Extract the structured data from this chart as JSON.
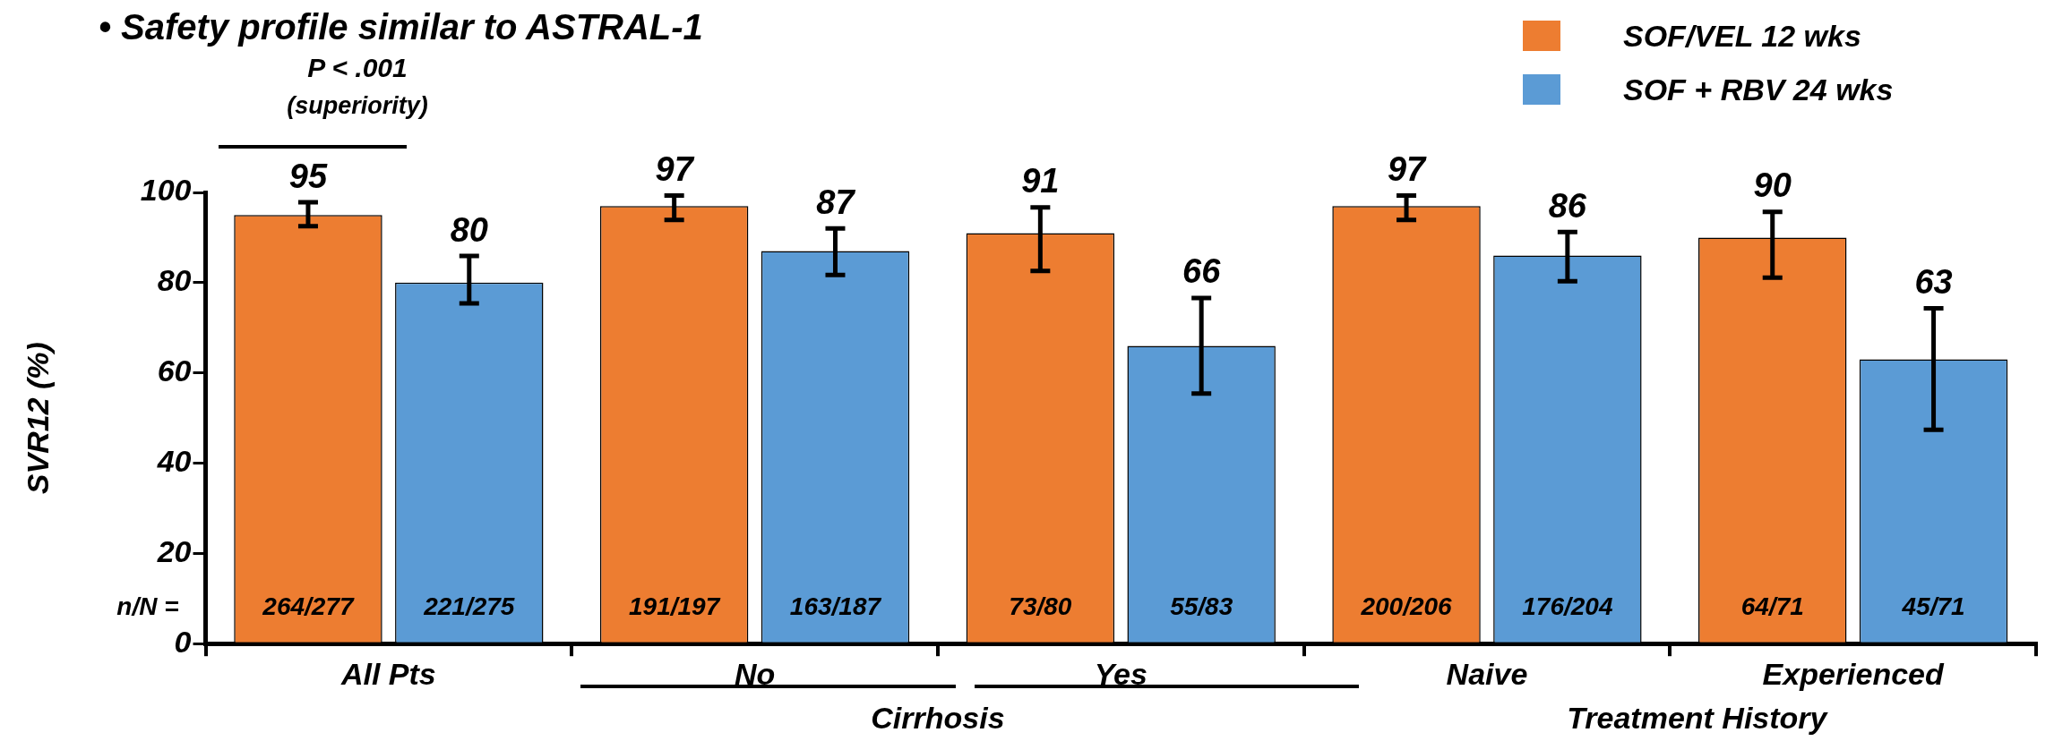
{
  "chart_data": {
    "type": "bar",
    "title": "• Safety profile similar to ASTRAL-1",
    "ylabel": "SVR12 (%)",
    "categories": [
      "All Pts",
      "No",
      "Yes",
      "Naive",
      "Experienced"
    ],
    "series": [
      {
        "name": "SOF/VEL 12 wks",
        "color": "#ed7d31",
        "values": [
          95,
          97,
          91,
          97,
          90
        ],
        "errors": [
          [
            92.5,
            97.8
          ],
          [
            93.9,
            99.3
          ],
          [
            82.6,
            96.7
          ],
          [
            93.9,
            99.3
          ],
          [
            81.1,
            95.7
          ]
        ]
      },
      {
        "name": "SOF + RBV 24 wks",
        "color": "#5b9bd5",
        "values": [
          80,
          87,
          66,
          86,
          63
        ],
        "errors": [
          [
            75.4,
            85.9
          ],
          [
            81.7,
            92
          ],
          [
            55.4,
            76.6
          ],
          [
            80.3,
            91.2
          ],
          [
            47.4,
            74.3
          ]
        ]
      }
    ],
    "ylim": [
      0,
      100
    ],
    "yticks": [
      0,
      20,
      40,
      60,
      80,
      100
    ],
    "grid": false,
    "legend": "top right",
    "data_labels": true,
    "annotations": [
      "n/N =",
      "264/277",
      "191/197",
      "73/80",
      "200/206",
      "64/71",
      "221/275",
      "163/187",
      "55/83",
      "176/204",
      "45/71",
      "P < .001 (superiority)",
      "Cirrhosis",
      "Treatment History"
    ]
  }
}
